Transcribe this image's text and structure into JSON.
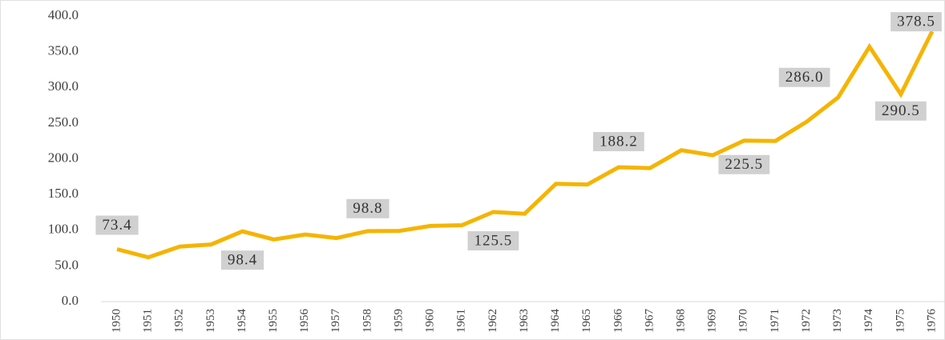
{
  "chart_data": {
    "type": "line",
    "categories": [
      "1950",
      "1951",
      "1952",
      "1953",
      "1954",
      "1955",
      "1956",
      "1957",
      "1958",
      "1959",
      "1960",
      "1961",
      "1962",
      "1963",
      "1964",
      "1965",
      "1966",
      "1967",
      "1968",
      "1969",
      "1970",
      "1971",
      "1972",
      "1973",
      "1974",
      "1975",
      "1976"
    ],
    "series": [
      {
        "color": "#f5b400",
        "values": [
          73.4,
          62,
          77,
          80,
          98.4,
          87,
          94,
          89,
          98.8,
          99,
          106,
          107,
          125.5,
          123,
          165,
          164,
          188.2,
          187,
          212,
          205,
          225.5,
          225,
          252,
          286.0,
          357,
          290.5,
          378.5
        ],
        "value_labels": [
          "73.4",
          null,
          null,
          null,
          "98.4",
          null,
          null,
          null,
          "98.8",
          null,
          null,
          null,
          "125.5",
          null,
          null,
          null,
          "188.2",
          null,
          null,
          null,
          "225.5",
          null,
          null,
          "286.0",
          null,
          "290.5",
          "378.5"
        ]
      }
    ],
    "ylim": [
      0,
      400
    ],
    "yticks": [
      {
        "value": 0,
        "label": "0.0"
      },
      {
        "value": 50,
        "label": "50.0"
      },
      {
        "value": 100,
        "label": "100.0"
      },
      {
        "value": 150,
        "label": "150.0"
      },
      {
        "value": 200,
        "label": "200.0"
      },
      {
        "value": 250,
        "label": "250.0"
      },
      {
        "value": 300,
        "label": "300.0"
      },
      {
        "value": 350,
        "label": "350.0"
      },
      {
        "value": 400,
        "label": "400.0"
      }
    ]
  }
}
